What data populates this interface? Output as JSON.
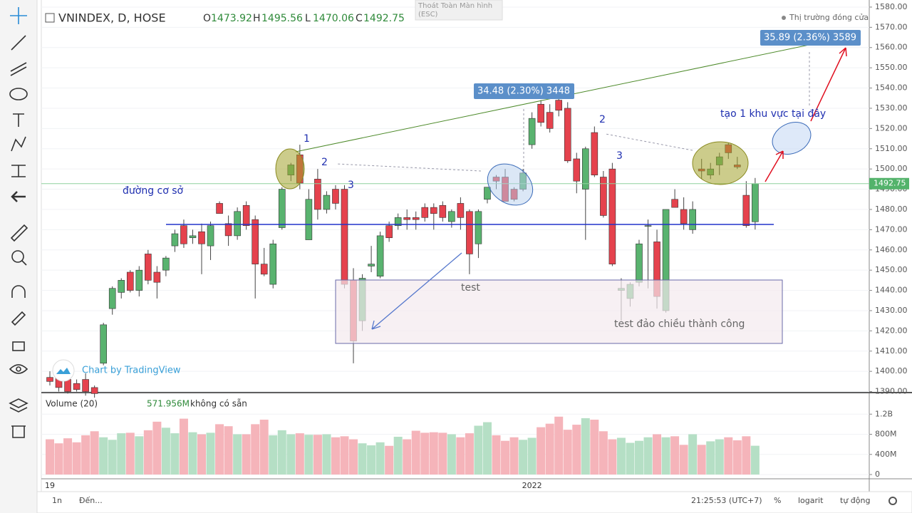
{
  "chart_data": {
    "type": "candlestick",
    "title": "VNINDEX, D, HOSE",
    "categories": [
      "19",
      null,
      null,
      null,
      null,
      null,
      null,
      null,
      null,
      null,
      null,
      null,
      null,
      null,
      null,
      null,
      null,
      null,
      null,
      null,
      null,
      null,
      null,
      null,
      null,
      null,
      null,
      null,
      null,
      null,
      null,
      null,
      null,
      null,
      null,
      null,
      null,
      null,
      null,
      null,
      null,
      null,
      null,
      null,
      null,
      null,
      null,
      null,
      null,
      null,
      null,
      null,
      null,
      null,
      "2022",
      null,
      null,
      null,
      null,
      null,
      null,
      null,
      null,
      null,
      null,
      null,
      null,
      null,
      null,
      null,
      null,
      null,
      null,
      null,
      null,
      null,
      null,
      null,
      null,
      null
    ],
    "open": [
      1397,
      1397,
      1396,
      1394,
      1396,
      1392,
      1404,
      1431,
      1439,
      1449,
      1440,
      1458,
      1449,
      1450,
      1462,
      1472,
      1466,
      1469,
      1462,
      1483,
      1473,
      1467,
      1482,
      1475,
      1453,
      1443,
      1471,
      1497,
      1507,
      1465,
      1495,
      1480,
      1490,
      1490,
      1445,
      1425,
      1452,
      1447,
      1472,
      1472,
      1476,
      1476,
      1481,
      1481,
      1482,
      1474,
      1483,
      1479,
      1463,
      1485,
      1496,
      1496,
      1490,
      1490,
      1512,
      1532,
      1528,
      1534,
      1530,
      1505,
      1490,
      1518,
      1496,
      1500,
      1440,
      1436,
      1444,
      1472,
      1464,
      1430,
      1485,
      1480,
      1470,
      1500,
      1497,
      1502,
      1512,
      1502,
      1487,
      1473.92
    ],
    "high": [
      1400,
      1399,
      1398,
      1396,
      1399,
      1393,
      1424,
      1442,
      1446,
      1450,
      1452,
      1460,
      1452,
      1457,
      1470,
      1475,
      1470,
      1473,
      1474,
      1484,
      1477,
      1481,
      1484,
      1477,
      1461,
      1465,
      1491,
      1503,
      1512,
      1490,
      1500,
      1489,
      1492,
      1492,
      1451,
      1448,
      1462,
      1469,
      1474,
      1478,
      1480,
      1479,
      1483,
      1483,
      1484,
      1480,
      1486,
      1480,
      1480,
      1491,
      1497,
      1500,
      1491,
      1500,
      1528,
      1534,
      1532,
      1537,
      1533,
      1508,
      1511,
      1521,
      1499,
      1503,
      1446,
      1444,
      1465,
      1475,
      1470,
      1480,
      1490,
      1486,
      1484,
      1505,
      1503,
      1508,
      1513,
      1506,
      1494,
      1495.56
    ],
    "low": [
      1393,
      1390,
      1389,
      1390,
      1388,
      1387,
      1403,
      1428,
      1436,
      1439,
      1437,
      1443,
      1436,
      1447,
      1459,
      1461,
      1463,
      1448,
      1455,
      1478,
      1462,
      1465,
      1470,
      1436,
      1447,
      1441,
      1470,
      1494,
      1490,
      1465,
      1475,
      1478,
      1480,
      1441,
      1404,
      1420,
      1449,
      1446,
      1464,
      1470,
      1470,
      1470,
      1474,
      1470,
      1474,
      1471,
      1470,
      1448,
      1456,
      1483,
      1490,
      1484,
      1484,
      1489,
      1510,
      1521,
      1518,
      1526,
      1503,
      1488,
      1465,
      1496,
      1476,
      1452,
      1425,
      1432,
      1442,
      1441,
      1431,
      1429,
      1481,
      1470,
      1468,
      1495,
      1495,
      1497,
      1505,
      1500,
      1471,
      1470.06
    ],
    "close": [
      1395,
      1392,
      1390,
      1391,
      1390,
      1389,
      1423,
      1441,
      1445,
      1440,
      1450,
      1445,
      1444,
      1456,
      1468,
      1463,
      1467,
      1463,
      1472,
      1478,
      1467,
      1479,
      1472,
      1453,
      1448,
      1463,
      1490,
      1502,
      1493,
      1485,
      1480,
      1487,
      1483,
      1443,
      1415,
      1446,
      1453,
      1467,
      1466,
      1476,
      1475,
      1475,
      1476,
      1478,
      1476,
      1479,
      1476,
      1458,
      1479,
      1491,
      1494,
      1484,
      1485,
      1498,
      1525,
      1523,
      1520,
      1529,
      1504,
      1494,
      1510,
      1497,
      1477,
      1453,
      1441,
      1443,
      1463,
      1472,
      1437,
      1480,
      1481,
      1473,
      1480,
      1499,
      1500,
      1506,
      1508,
      1501,
      1472,
      1492.75
    ],
    "up_color": "#59b36f",
    "down_color": "#e5424d",
    "ylim": [
      1389.5,
      1583.5
    ],
    "yticks": [
      {
        "value": 1390,
        "label": "1390.00"
      },
      {
        "value": 1400,
        "label": "1400.00"
      },
      {
        "value": 1410,
        "label": "1410.00"
      },
      {
        "value": 1420,
        "label": "1420.00"
      },
      {
        "value": 1430,
        "label": "1430.00"
      },
      {
        "value": 1440,
        "label": "1440.00"
      },
      {
        "value": 1450,
        "label": "1450.00"
      },
      {
        "value": 1460,
        "label": "1460.00"
      },
      {
        "value": 1470,
        "label": "1470.00"
      },
      {
        "value": 1480,
        "label": "1480.00"
      },
      {
        "value": 1490,
        "label": "1490.00"
      },
      {
        "value": 1500,
        "label": "1500.00"
      },
      {
        "value": 1510,
        "label": "1510.00"
      },
      {
        "value": 1520,
        "label": "1520.00"
      },
      {
        "value": 1530,
        "label": "1530.00"
      },
      {
        "value": 1540,
        "label": "1540.00"
      },
      {
        "value": 1550,
        "label": "1550.00"
      },
      {
        "value": 1560,
        "label": "1560.00"
      },
      {
        "value": 1570,
        "label": "1570.00"
      },
      {
        "value": 1580,
        "label": "1580.00"
      }
    ],
    "grid": true,
    "price_marker": {
      "value": 1492.75,
      "label": "1492.75"
    },
    "volume": {
      "name": "Volume (20)",
      "last_label": "571.956M",
      "up_color": "#b5dfc5",
      "down_color": "#f5b4ba",
      "values": [
        700,
        620,
        720,
        640,
        780,
        860,
        740,
        690,
        820,
        830,
        760,
        880,
        1050,
        930,
        820,
        1110,
        840,
        800,
        830,
        1000,
        960,
        800,
        800,
        1000,
        1090,
        780,
        880,
        800,
        820,
        790,
        790,
        800,
        740,
        760,
        700,
        620,
        580,
        640,
        570,
        750,
        700,
        870,
        830,
        840,
        830,
        800,
        740,
        820,
        970,
        1040,
        780,
        670,
        740,
        690,
        730,
        940,
        1010,
        1150,
        890,
        990,
        1120,
        1090,
        860,
        700,
        730,
        630,
        670,
        740,
        800,
        740,
        760,
        590,
        800,
        590,
        660,
        700,
        740,
        680,
        760,
        571.956
      ],
      "ylim": [
        0,
        1600
      ],
      "yticks": [
        0,
        {
          "value": 400,
          "label": "400M"
        },
        {
          "value": 800,
          "label": "800M"
        },
        {
          "value": 1200,
          "label": "1.2B"
        }
      ]
    }
  },
  "ui": {
    "ohlc": [
      "O",
      "H",
      "L",
      "C"
    ],
    "market_status": "Thị trường đóng cửa",
    "tooltip": [
      "Thoát Toàn Màn hình",
      "(ESC)"
    ],
    "watermark": "Chart by TradingView",
    "volume_status": "không có sẵn",
    "bottom": {
      "range": "1n",
      "goto": "Đến...",
      "time": "21:25:53 (UTC+7)",
      "percent": "%",
      "log": "logarit",
      "auto": "tự động"
    }
  },
  "annotations": {
    "baseline": "đường cơ sở",
    "test": "test",
    "test_success": "test đảo chiều thành công",
    "zone": "tạo 1 khu vực tại đây",
    "measure_1": "34.48 (2.30%) 3448",
    "measure_2": "35.89 (2.36%) 3589",
    "waves": [
      "1",
      "2",
      "3",
      "2",
      "3"
    ]
  }
}
